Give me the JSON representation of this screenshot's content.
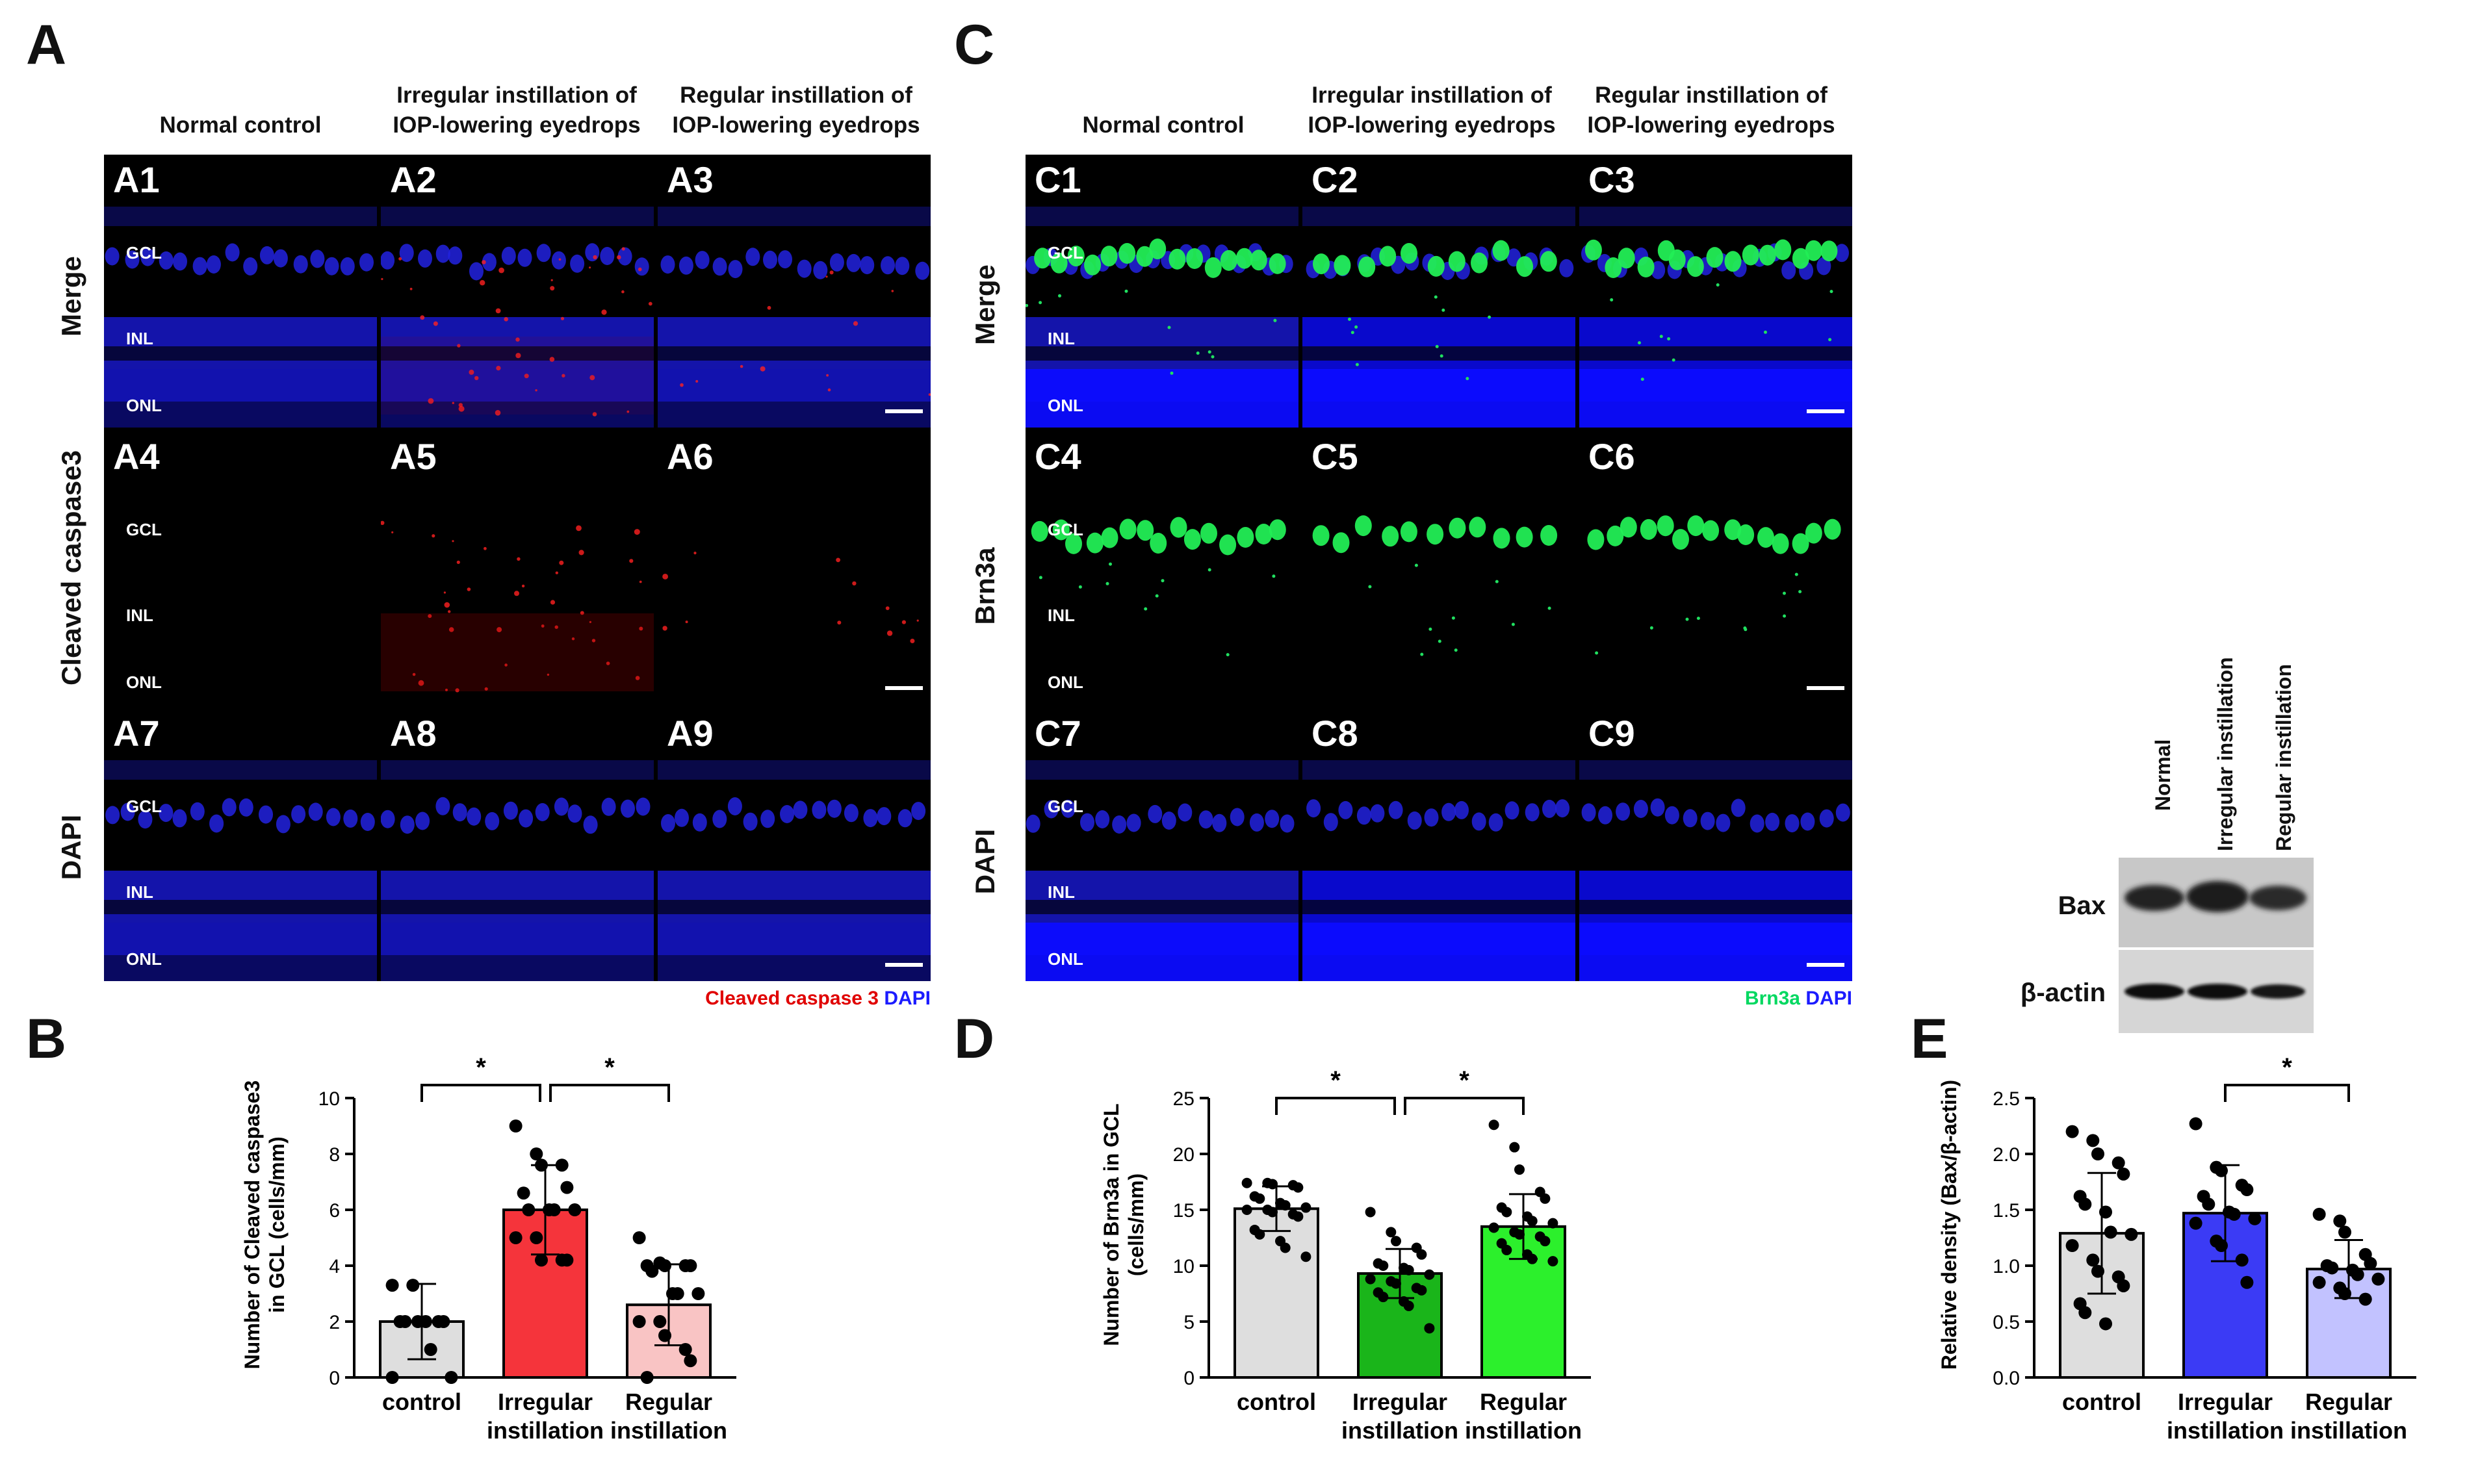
{
  "panels": {
    "A": "A",
    "B": "B",
    "C": "C",
    "D": "D",
    "E": "E"
  },
  "panelA": {
    "columns": [
      "Normal control",
      "Irregular instillation of\nIOP-lowering eyedrops",
      "Regular instillation of\nIOP-lowering eyedrops"
    ],
    "rows": [
      "Merge",
      "Cleaved caspase3",
      "DAPI"
    ],
    "tiles": [
      "A1",
      "A2",
      "A3",
      "A4",
      "A5",
      "A6",
      "A7",
      "A8",
      "A9"
    ],
    "layers": {
      "gcl": "GCL",
      "inl": "INL",
      "onl": "ONL"
    },
    "legend_red": "Cleaved caspase 3",
    "legend_blue": "DAPI"
  },
  "panelC": {
    "columns": [
      "Normal control",
      "Irregular instillation of\nIOP-lowering eyedrops",
      "Regular instillation of\nIOP-lowering eyedrops"
    ],
    "rows": [
      "Merge",
      "Brn3a",
      "DAPI"
    ],
    "tiles": [
      "C1",
      "C2",
      "C3",
      "C4",
      "C5",
      "C6",
      "C7",
      "C8",
      "C9"
    ],
    "layers": {
      "gcl": "GCL",
      "inl": "INL",
      "onl": "ONL"
    },
    "legend_green": "Brn3a",
    "legend_blue": "DAPI"
  },
  "westernBlot": {
    "lanes": [
      "Normal",
      "Irregular instillation",
      "Regular instillation"
    ],
    "bands": [
      "Bax",
      "β-actin"
    ]
  },
  "colors": {
    "control_bar": "#dedede",
    "red_irregular": "#f5343b",
    "red_regular": "#f9c4c4",
    "green_irregular": "#1ab51a",
    "green_regular": "#2cf02c",
    "blue_irregular": "#3b3bf5",
    "blue_regular": "#c2c2ff",
    "dapi_blue": "#1b1bff",
    "caspase_red": "#e00000",
    "brn3a_green": "#00e050"
  },
  "chart_data": [
    {
      "type": "bar",
      "panel": "B",
      "categories": [
        "control",
        "Irregular\ninstillation",
        "Regular\ninstillation"
      ],
      "values": [
        2.0,
        6.0,
        2.6
      ],
      "errors": [
        1.35,
        1.6,
        1.45
      ],
      "ylabel": "Number of Cleaved caspase3\nin GCL (cells/mm)",
      "ylim": [
        0,
        10
      ],
      "yticks": [
        0,
        2,
        4,
        6,
        8,
        10
      ],
      "significance": [
        {
          "from": 0,
          "to": 1,
          "label": "*"
        },
        {
          "from": 1,
          "to": 2,
          "label": "*"
        }
      ],
      "points": [
        [
          3.3,
          3.3,
          2.0,
          2.0,
          2.0,
          2.0,
          2.0,
          2.0,
          1.0,
          0,
          0
        ],
        [
          9.0,
          8.0,
          7.6,
          7.6,
          6.8,
          6.6,
          6.0,
          6.0,
          6.0,
          6.0,
          5.0,
          5.0,
          4.2,
          4.2,
          4.2
        ],
        [
          5.0,
          4.1,
          4.0,
          4.0,
          4.0,
          4.0,
          3.8,
          3.0,
          3.0,
          3.0,
          2.0,
          2.0,
          1.5,
          1.0,
          0.6,
          0
        ]
      ]
    },
    {
      "type": "bar",
      "panel": "D",
      "categories": [
        "control",
        "Irregular\ninstillation",
        "Regular\ninstillation"
      ],
      "values": [
        15.1,
        9.3,
        13.5
      ],
      "errors": [
        2.0,
        2.2,
        2.9
      ],
      "ylabel": "Number of Brn3a in GCL\n(cells/mm)",
      "ylim": [
        0,
        25
      ],
      "yticks": [
        0,
        5,
        10,
        15,
        20,
        25
      ],
      "significance": [
        {
          "from": 0,
          "to": 1,
          "label": "*"
        },
        {
          "from": 1,
          "to": 2,
          "label": "*"
        }
      ],
      "points": [
        [
          17.4,
          17.4,
          17.3,
          17.2,
          17.0,
          16.2,
          16.0,
          15.6,
          15.4,
          15.2,
          15.0,
          15.0,
          14.8,
          14.6,
          14.4,
          13.2,
          12.8,
          12.2,
          11.6,
          10.8
        ],
        [
          14.8,
          13.0,
          12.2,
          11.6,
          11.0,
          10.2,
          10.0,
          9.8,
          9.6,
          9.2,
          8.8,
          8.6,
          8.4,
          8.0,
          7.8,
          7.6,
          7.2,
          6.8,
          6.4,
          4.4
        ],
        [
          22.6,
          20.6,
          18.6,
          16.6,
          16.0,
          15.2,
          14.8,
          14.4,
          14.0,
          13.8,
          13.4,
          13.0,
          12.8,
          12.6,
          12.2,
          12.0,
          11.4,
          11.0,
          10.6,
          10.4
        ]
      ]
    },
    {
      "type": "bar",
      "panel": "E",
      "categories": [
        "control",
        "Irregular\ninstillation",
        "Regular\ninstillation"
      ],
      "values": [
        1.29,
        1.47,
        0.97
      ],
      "errors": [
        0.54,
        0.43,
        0.26
      ],
      "ylabel": "Relative density (Bax/β-actin)",
      "ylim": [
        0,
        2.5
      ],
      "yticks": [
        0.0,
        0.5,
        1.0,
        1.5,
        2.0,
        2.5
      ],
      "significance": [
        {
          "from": 1,
          "to": 2,
          "label": "*"
        }
      ],
      "points": [
        [
          2.2,
          2.12,
          2.0,
          1.92,
          1.82,
          1.62,
          1.55,
          1.48,
          1.3,
          1.28,
          1.18,
          1.05,
          0.95,
          0.9,
          0.82,
          0.66,
          0.58,
          0.48
        ],
        [
          2.27,
          1.88,
          1.85,
          1.72,
          1.68,
          1.62,
          1.55,
          1.48,
          1.46,
          1.42,
          1.38,
          1.22,
          1.18,
          1.05,
          0.85
        ],
        [
          1.46,
          1.4,
          1.3,
          1.1,
          1.02,
          1.0,
          0.98,
          0.96,
          0.92,
          0.88,
          0.85,
          0.8,
          0.75,
          0.7
        ]
      ]
    }
  ]
}
